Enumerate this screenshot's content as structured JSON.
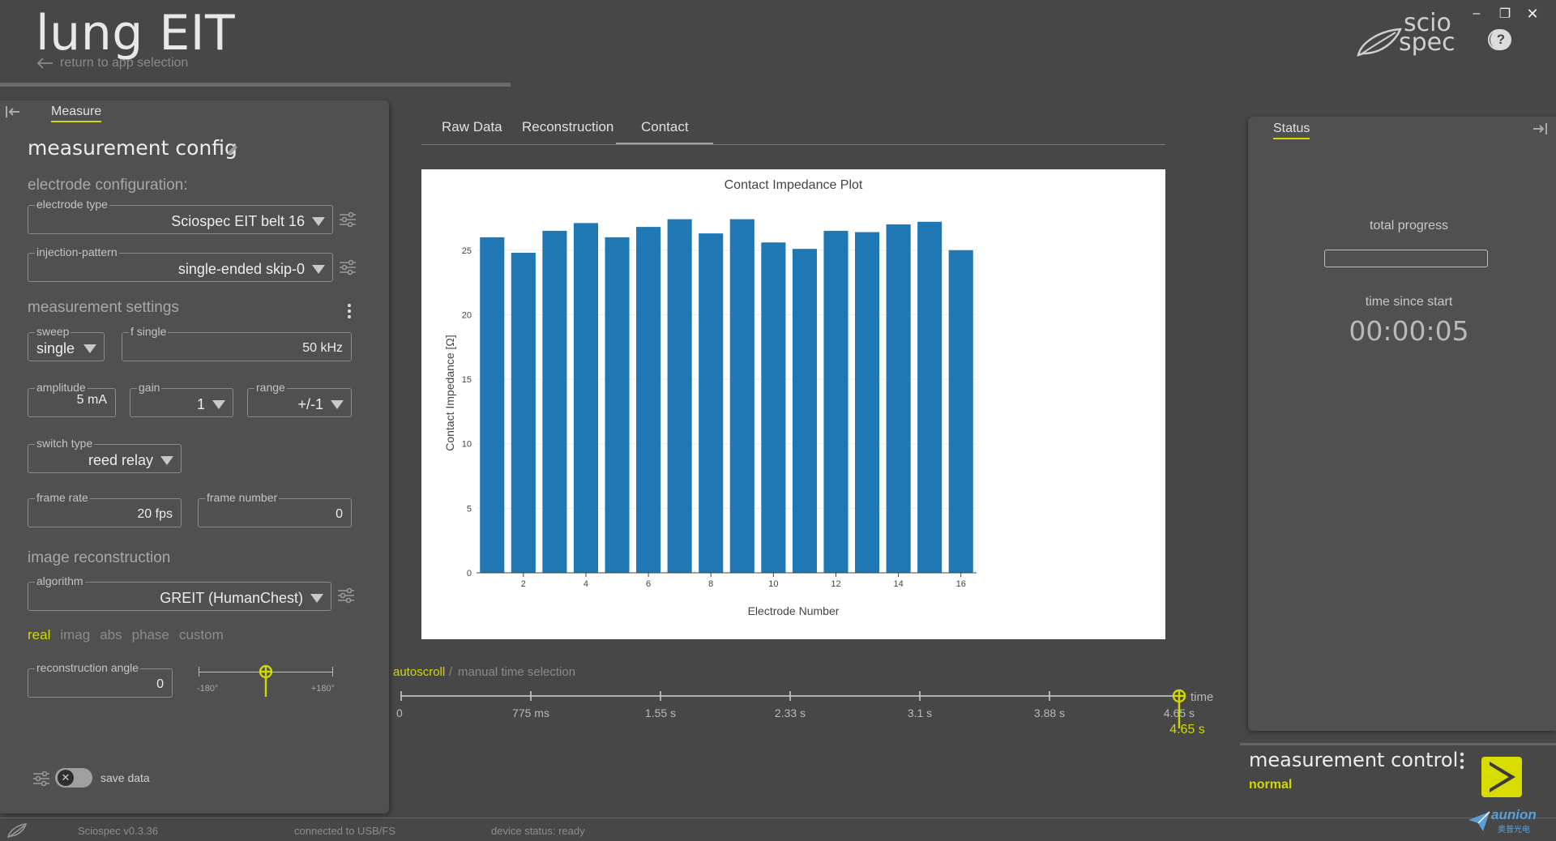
{
  "header": {
    "title": "lung EIT",
    "return_label": "return to app selection",
    "logo_line1": "scio",
    "logo_line2": "spec",
    "window_controls": [
      "minimize",
      "restore",
      "close"
    ]
  },
  "left_panel": {
    "tab_label": "Measure",
    "config_title": "measurement config",
    "electrode_section": "electrode configuration:",
    "electrode_type": {
      "label": "electrode type",
      "value": "Sciospec EIT belt 16"
    },
    "injection_pattern": {
      "label": "injection-pattern",
      "value": "single-ended skip-0"
    },
    "settings_section": "measurement settings",
    "sweep": {
      "label": "sweep",
      "value": "single"
    },
    "f_single": {
      "label": "f single",
      "value": "50 kHz"
    },
    "amplitude": {
      "label": "amplitude",
      "value": "5 mA"
    },
    "gain": {
      "label": "gain",
      "value": "1"
    },
    "range": {
      "label": "range",
      "value": "+/-1"
    },
    "switch_type": {
      "label": "switch type",
      "value": "reed relay"
    },
    "frame_rate": {
      "label": "frame rate",
      "value": "20 fps"
    },
    "frame_number": {
      "label": "frame number",
      "value": "0"
    },
    "recon_section": "image reconstruction",
    "algorithm": {
      "label": "algorithm",
      "value": "GREIT (HumanChest)"
    },
    "recon_tabs": [
      "real",
      "imag",
      "abs",
      "phase",
      "custom"
    ],
    "recon_tab_active": "real",
    "recon_angle": {
      "label": "reconstruction angle",
      "value": "0"
    },
    "angle_slider": {
      "min_label": "-180°",
      "max_label": "+180°",
      "value": 0
    },
    "save_data_label": "save data",
    "save_data_on": false
  },
  "center": {
    "tabs": [
      "Raw Data",
      "Reconstruction",
      "Contact"
    ],
    "active_tab": "Contact",
    "autoscroll_label": "autoscroll",
    "separator": "/",
    "manual_label": "manual time selection",
    "timeline": {
      "ticks": [
        "0",
        "775 ms",
        "1.55 s",
        "2.33 s",
        "3.1 s",
        "3.88 s",
        "4.65 s"
      ],
      "axis_label": "time",
      "current_label": "4.65 s",
      "current_fraction": 1.0
    }
  },
  "chart_data": {
    "type": "bar",
    "title": "Contact Impedance Plot",
    "xlabel": "Electrode Number",
    "ylabel": "Contact Impedance [Ω]",
    "categories": [
      1,
      2,
      3,
      4,
      5,
      6,
      7,
      8,
      9,
      10,
      11,
      12,
      13,
      14,
      15,
      16
    ],
    "values": [
      26.0,
      24.8,
      26.5,
      27.1,
      26.0,
      26.8,
      27.4,
      26.3,
      27.4,
      25.6,
      25.1,
      26.5,
      26.4,
      27.0,
      27.2,
      25.0
    ],
    "xticks": [
      2,
      4,
      6,
      8,
      10,
      12,
      14,
      16
    ],
    "yticks": [
      0,
      5,
      10,
      15,
      20,
      25
    ],
    "xlim": [
      0.5,
      16.5
    ],
    "ylim": [
      0,
      28
    ],
    "bar_color": "#1f77b4",
    "grid": true
  },
  "right_panel": {
    "tab_label": "Status",
    "total_progress_label": "total progress",
    "progress_fraction": 0,
    "time_label": "time since start",
    "time_value": "00:00:05",
    "control_title": "measurement control",
    "control_mode": "normal"
  },
  "status_bar": {
    "version": "Sciospec v0.3.36",
    "connection": "connected to USB/FS",
    "device_status": "device status: ready"
  },
  "watermark": {
    "text": "aunion",
    "subtext": "奥普光电"
  },
  "colors": {
    "accent": "#d4d800",
    "background": "#474747",
    "panel": "#505050",
    "bar": "#1f77b4"
  }
}
